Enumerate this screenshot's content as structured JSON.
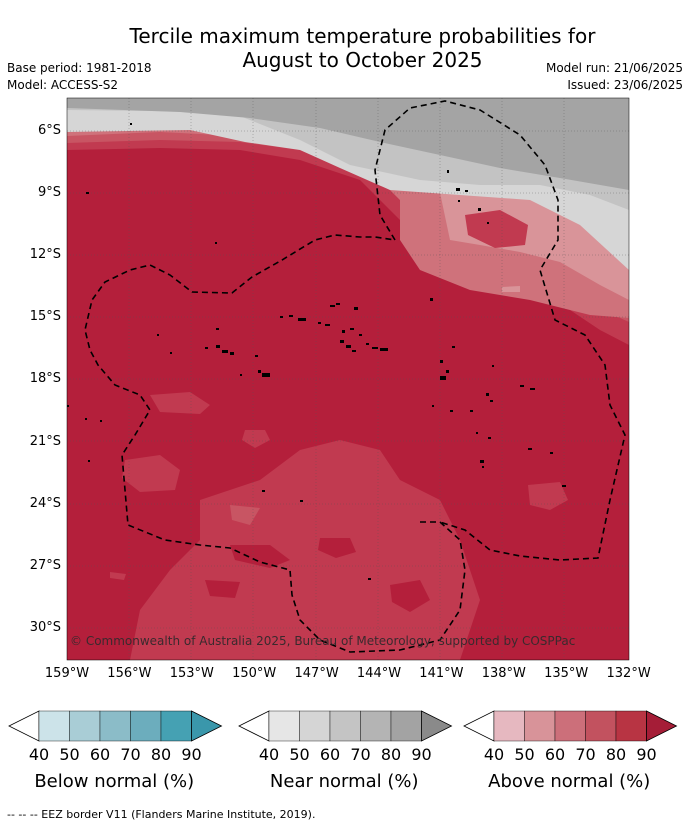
{
  "header": {
    "title_line1": "Tercile maximum temperature probabilities for",
    "title_line2": "August to October 2025",
    "base_period": "Base period: 1981-2018",
    "model": "Model: ACCESS-S2",
    "model_run": "Model run: 21/06/2025",
    "issued": "Issued: 23/06/2025"
  },
  "map": {
    "lat_labels": [
      "6°S",
      "9°S",
      "12°S",
      "15°S",
      "18°S",
      "21°S",
      "24°S",
      "27°S",
      "30°S"
    ],
    "lon_labels": [
      "159°W",
      "156°W",
      "153°W",
      "150°W",
      "147°W",
      "144°W",
      "141°W",
      "138°W",
      "135°W",
      "132°W"
    ],
    "copyright": "© Commonwealth of Australia 2025, Bureau of Meteorology, supported by COSPPac",
    "colors": {
      "above_90": "#b41f3b",
      "above_80": "#c13a50",
      "above_70": "#c85563",
      "above_60": "#cf727b",
      "above_50": "#d99499",
      "near_90": "#a4a4a4",
      "near_70": "#c3c3c3",
      "near_50": "#d6d6d6"
    }
  },
  "colorbars": [
    {
      "title": "Below normal (%)",
      "ticks": [
        "40",
        "50",
        "60",
        "70",
        "80",
        "90"
      ],
      "colors": [
        "#ffffff",
        "#cce3e9",
        "#a9cdd6",
        "#8bbcc8",
        "#6cadbd",
        "#45a1b3",
        "#3a97ab"
      ]
    },
    {
      "title": "Near normal (%)",
      "ticks": [
        "40",
        "50",
        "60",
        "70",
        "80",
        "90"
      ],
      "colors": [
        "#ffffff",
        "#e6e6e6",
        "#d5d5d5",
        "#c4c4c4",
        "#b4b4b4",
        "#a3a3a3",
        "#8a8a8a"
      ]
    },
    {
      "title": "Above normal (%)",
      "ticks": [
        "40",
        "50",
        "60",
        "70",
        "80",
        "90"
      ],
      "colors": [
        "#ffffff",
        "#e6b8c0",
        "#d89399",
        "#cc6f7a",
        "#c2525f",
        "#b83443",
        "#a51d37"
      ]
    }
  ],
  "footer": {
    "eez": "--  --  -- EEZ border V11 (Flanders Marine Institute, 2019)."
  }
}
